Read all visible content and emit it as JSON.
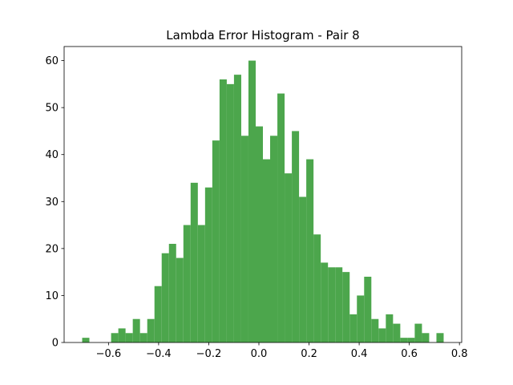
{
  "chart_data": {
    "type": "histogram",
    "title": "Lambda Error Histogram - Pair 8",
    "bins": [
      -0.705,
      -0.6762,
      -0.6473,
      -0.6185,
      -0.5896,
      -0.5608,
      -0.532,
      -0.5031,
      -0.4743,
      -0.4454,
      -0.4166,
      -0.3878,
      -0.3589,
      -0.3301,
      -0.3012,
      -0.2724,
      -0.2436,
      -0.2147,
      -0.1859,
      -0.157,
      -0.1282,
      -0.0994,
      -0.0705,
      -0.0417,
      -0.0128,
      0.016,
      0.0448,
      0.0737,
      0.1025,
      0.1314,
      0.1602,
      0.189,
      0.2179,
      0.2467,
      0.2756,
      0.3044,
      0.3332,
      0.3621,
      0.3909,
      0.4198,
      0.4486,
      0.4774,
      0.5063,
      0.5351,
      0.564,
      0.5928,
      0.6216,
      0.6505,
      0.6793,
      0.7082,
      0.737
    ],
    "values": [
      1,
      0,
      0,
      0,
      2,
      3,
      2,
      5,
      2,
      5,
      12,
      19,
      21,
      18,
      25,
      34,
      25,
      33,
      43,
      56,
      55,
      57,
      44,
      60,
      46,
      39,
      44,
      53,
      36,
      45,
      31,
      39,
      23,
      17,
      16,
      16,
      15,
      6,
      10,
      14,
      5,
      3,
      6,
      4,
      1,
      1,
      4,
      2,
      0,
      2
    ],
    "color": "#4ca64c",
    "xlim": [
      -0.777,
      0.809
    ],
    "xticks": [
      {
        "value": -0.6,
        "label": "−0.6"
      },
      {
        "value": -0.4,
        "label": "−0.4"
      },
      {
        "value": -0.2,
        "label": "−0.2"
      },
      {
        "value": 0,
        "label": "0.0"
      },
      0.2,
      0.4,
      0.6,
      0.8
    ],
    "ylim": [
      0,
      63
    ],
    "yticks": [
      0,
      10,
      20,
      30,
      40,
      50,
      60
    ]
  }
}
